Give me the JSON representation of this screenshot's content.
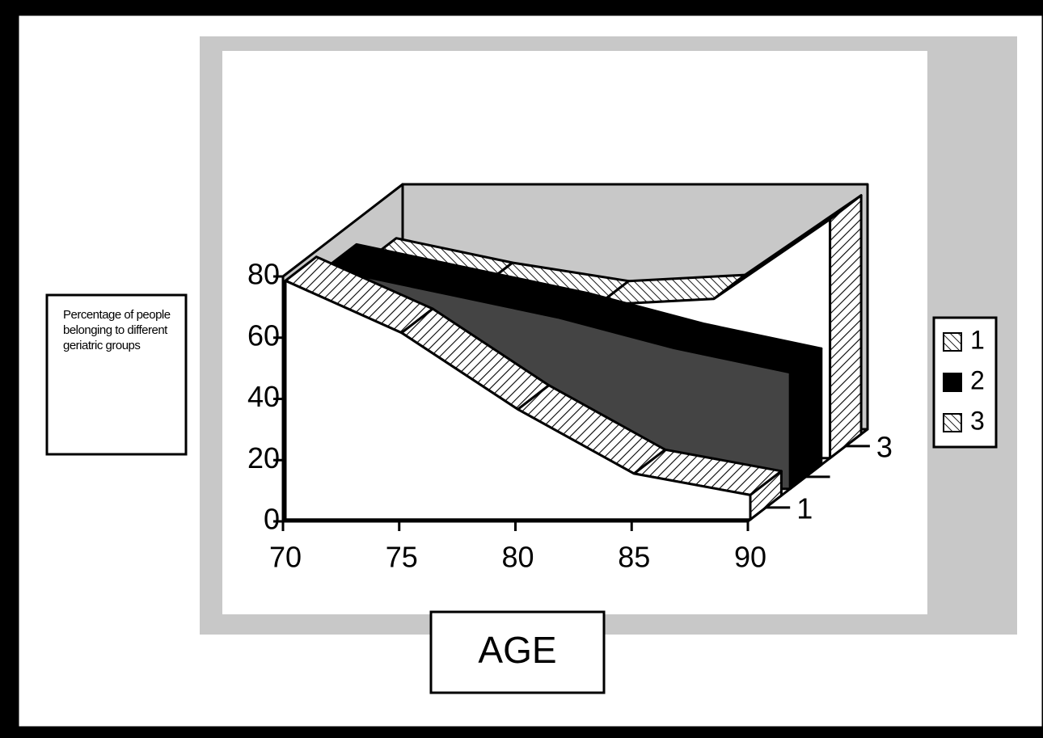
{
  "chart_data": {
    "type": "area3d",
    "y_label": "Percentage of people belonging to different geriatric groups",
    "x_label": "AGE",
    "categories": [
      "70",
      "75",
      "80",
      "85",
      "90"
    ],
    "depth_labels": [
      "1",
      null,
      "3"
    ],
    "ylim": [
      0,
      80
    ],
    "yticks": [
      0,
      20,
      40,
      60,
      80
    ],
    "grid": false,
    "legend": "right",
    "series": [
      {
        "name": "1",
        "color": "#000000",
        "pattern": "hatch",
        "values": [
          78,
          61,
          36,
          15,
          8
        ]
      },
      {
        "name": "2",
        "color": "#000000",
        "pattern": "solid",
        "values": [
          72,
          64,
          56,
          46,
          38
        ]
      },
      {
        "name": "3",
        "color": "#000000",
        "pattern": "hatch",
        "values": [
          64,
          56,
          50,
          52,
          78
        ]
      }
    ]
  }
}
